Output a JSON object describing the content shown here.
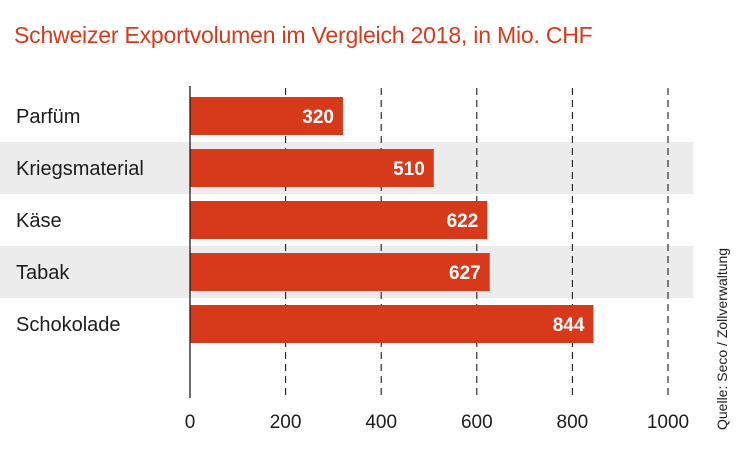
{
  "chart_data": {
    "type": "bar",
    "orientation": "horizontal",
    "title": "Schweizer Exportvolumen im Vergleich 2018, in Mio. CHF",
    "categories": [
      "Parfüm",
      "Kriegsmaterial",
      "Käse",
      "Tabak",
      "Schokolade"
    ],
    "values": [
      320,
      510,
      622,
      627,
      844
    ],
    "xlim": [
      0,
      1000
    ],
    "xticks": [
      0,
      200,
      400,
      600,
      800,
      1000
    ],
    "xlabel": "",
    "ylabel": "",
    "grid": "vertical dashed",
    "source": "Quelle: Seco / Zollverwaltung",
    "colors": {
      "bar": "#d63a1b",
      "band": "#ececec",
      "title": "#d53a1c",
      "text": "#1c1c1c"
    }
  }
}
